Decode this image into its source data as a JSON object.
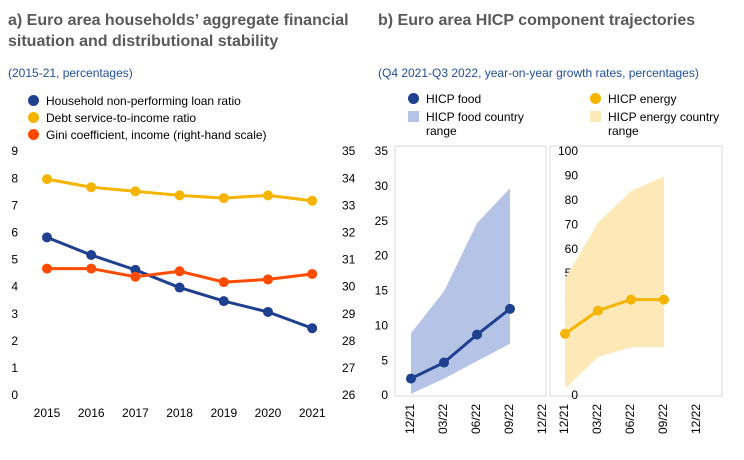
{
  "chart_data": [
    {
      "type": "line",
      "title": "a) Euro area households’ aggregate financial situation and distributional stability",
      "subtitle": "(2015-21, percentages)",
      "categories": [
        "2015",
        "2016",
        "2017",
        "2018",
        "2019",
        "2020",
        "2021"
      ],
      "series": [
        {
          "name": "Household non-performing loan ratio",
          "color": "#1f3f8f",
          "values": [
            5.85,
            5.2,
            4.65,
            4.0,
            3.5,
            3.1,
            2.5
          ]
        },
        {
          "name": "Debt service-to-income ratio",
          "color": "#f5b400",
          "values": [
            8.0,
            7.7,
            7.55,
            7.4,
            7.3,
            7.4,
            7.2
          ]
        },
        {
          "name": "Gini coefficient, income (right-hand scale)",
          "color": "#ff4b00",
          "axis": "y2",
          "values": [
            30.7,
            30.7,
            30.4,
            30.6,
            30.2,
            30.3,
            30.5
          ]
        }
      ],
      "ylim": [
        0,
        9
      ],
      "yticks": [
        0,
        1,
        2,
        3,
        4,
        5,
        6,
        7,
        8,
        9
      ],
      "y2lim": [
        26,
        35
      ],
      "y2ticks": [
        26,
        27,
        28,
        29,
        30,
        31,
        32,
        33,
        34,
        35
      ]
    },
    {
      "type": "line",
      "title": "b) Euro area HICP component trajectories",
      "subtitle": "(Q4 2021-Q3 2022, year-on-year growth rates, percentages)",
      "categories": [
        "12/21",
        "03/22",
        "06/22",
        "09/22",
        "12/22"
      ],
      "series": [
        {
          "name": "HICP food",
          "color": "#1f3f8f",
          "values": [
            2.5,
            4.8,
            8.8,
            12.5,
            null
          ]
        }
      ],
      "band": {
        "name": "HICP food country range",
        "color": "#b4c3e6",
        "low": [
          0.3,
          2.5,
          5.0,
          7.5,
          null
        ],
        "high": [
          9.0,
          15.0,
          24.8,
          29.8,
          null
        ]
      },
      "ylim": [
        0,
        35
      ],
      "yticks": [
        0,
        5,
        10,
        15,
        20,
        25,
        30,
        35
      ]
    },
    {
      "type": "line",
      "categories": [
        "12/21",
        "03/22",
        "06/22",
        "09/22",
        "12/22"
      ],
      "series": [
        {
          "name": "HICP energy",
          "color": "#f5b400",
          "values": [
            25.5,
            35.0,
            39.5,
            39.5,
            null
          ]
        }
      ],
      "band": {
        "name": "HICP energy country range",
        "color": "#fde9b8",
        "low": [
          3,
          16,
          20,
          20,
          null
        ],
        "high": [
          48,
          71,
          84,
          90,
          null
        ]
      },
      "ylim": [
        0,
        100
      ],
      "yticks": [
        0,
        10,
        20,
        30,
        40,
        50,
        60,
        70,
        80,
        90,
        100
      ]
    }
  ]
}
